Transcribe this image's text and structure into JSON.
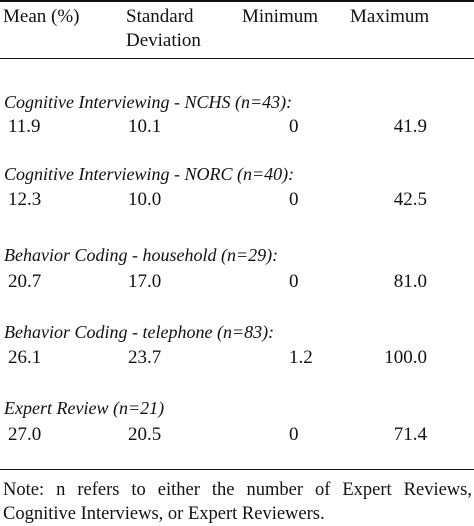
{
  "headers": {
    "mean": "Mean (%)",
    "sd_line1": "Standard",
    "sd_line2": "Deviation",
    "min": "Minimum",
    "max": "Maximum"
  },
  "groups": [
    {
      "label": "Cognitive Interviewing - NCHS   (n=43):",
      "mean": "11.9",
      "sd": "10.1",
      "min": "0",
      "max": "41.9"
    },
    {
      "label": "Cognitive Interviewing  - NORC (n=40):",
      "mean": "12.3",
      "sd": "10.0",
      "min": "0",
      "max": "42.5"
    },
    {
      "label": "Behavior Coding - household  (n=29):",
      "mean": "20.7",
      "sd": "17.0",
      "min": "0",
      "max": "81.0"
    },
    {
      "label": "Behavior Coding - telephone  (n=83):",
      "mean": "26.1",
      "sd": "23.7",
      "min": "1.2",
      "max": "100.0"
    },
    {
      "label": "Expert Review  (n=21)",
      "mean": "27.0",
      "sd": "20.5",
      "min": "0",
      "max": "71.4"
    }
  ],
  "note": "Note: n refers to either the number of Expert Reviews, Cognitive Interviews, or Expert Reviewers."
}
